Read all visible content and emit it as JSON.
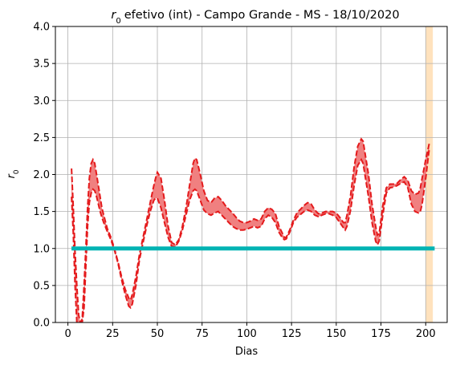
{
  "chart_data": {
    "type": "line",
    "title": "efetivo (int) - Campo Grande - MS - 18/10/2020",
    "title_symbol": "r",
    "title_symbol_sub": "0",
    "xlabel": "Dias",
    "ylabel_symbol": "r",
    "ylabel_sub": "0",
    "xlim": [
      -7,
      212
    ],
    "ylim": [
      0,
      4.0
    ],
    "x_ticks": [
      0,
      25,
      50,
      75,
      100,
      125,
      150,
      175,
      200
    ],
    "x_tick_labels": [
      "0",
      "25",
      "50",
      "75",
      "100",
      "125",
      "150",
      "175",
      "200"
    ],
    "y_ticks": [
      0,
      0.5,
      1.0,
      1.5,
      2.0,
      2.5,
      3.0,
      3.5,
      4.0
    ],
    "y_tick_labels": [
      "0.0",
      "0.5",
      "1.0",
      "1.5",
      "2.0",
      "2.5",
      "3.0",
      "3.5",
      "4.0"
    ],
    "grid": true,
    "colors": {
      "band_fill": "#f08080",
      "band_edge": "#e41a1c",
      "threshold": "#00b3b3",
      "highlight": "#ffe2bd"
    },
    "highlight_span": [
      200,
      204
    ],
    "threshold": {
      "y": 1.0,
      "x_start": 2,
      "x_end": 205
    },
    "series": [
      {
        "role": "upper",
        "x": [
          2,
          3,
          4,
          5,
          6,
          7,
          8,
          9,
          10,
          11,
          12,
          13,
          14,
          15,
          16,
          17,
          18,
          19,
          20,
          22,
          24,
          26,
          28,
          30,
          32,
          34,
          35,
          36,
          38,
          40,
          42,
          44,
          46,
          48,
          49,
          50,
          52,
          54,
          56,
          58,
          60,
          62,
          64,
          66,
          68,
          70,
          71,
          72,
          74,
          76,
          78,
          80,
          82,
          84,
          86,
          88,
          90,
          92,
          94,
          96,
          98,
          100,
          102,
          104,
          106,
          108,
          110,
          112,
          114,
          116,
          118,
          120,
          121,
          122,
          124,
          126,
          128,
          130,
          132,
          134,
          136,
          138,
          140,
          142,
          144,
          146,
          148,
          150,
          152,
          154,
          155,
          156,
          158,
          160,
          162,
          164,
          165,
          166,
          168,
          170,
          172,
          173,
          174,
          176,
          178,
          180,
          182,
          184,
          186,
          188,
          190,
          192,
          194,
          196,
          197,
          198,
          200,
          202
        ],
        "y": [
          2.08,
          1.55,
          0.95,
          0.5,
          0.1,
          0.0,
          0.05,
          0.5,
          1.0,
          1.55,
          1.95,
          2.15,
          2.2,
          2.15,
          2.0,
          1.85,
          1.7,
          1.55,
          1.45,
          1.27,
          1.15,
          1.0,
          0.82,
          0.62,
          0.45,
          0.33,
          0.3,
          0.38,
          0.62,
          0.92,
          1.15,
          1.38,
          1.62,
          1.85,
          1.95,
          2.03,
          1.95,
          1.65,
          1.3,
          1.08,
          1.05,
          1.12,
          1.3,
          1.55,
          1.85,
          2.15,
          2.22,
          2.2,
          2.0,
          1.78,
          1.65,
          1.62,
          1.68,
          1.7,
          1.65,
          1.58,
          1.53,
          1.48,
          1.42,
          1.37,
          1.35,
          1.35,
          1.37,
          1.4,
          1.38,
          1.4,
          1.5,
          1.55,
          1.53,
          1.47,
          1.3,
          1.2,
          1.15,
          1.15,
          1.25,
          1.38,
          1.48,
          1.53,
          1.58,
          1.62,
          1.6,
          1.52,
          1.47,
          1.48,
          1.5,
          1.5,
          1.5,
          1.48,
          1.42,
          1.35,
          1.35,
          1.45,
          1.72,
          2.1,
          2.38,
          2.48,
          2.45,
          2.3,
          2.0,
          1.6,
          1.3,
          1.18,
          1.2,
          1.58,
          1.82,
          1.87,
          1.87,
          1.88,
          1.93,
          1.97,
          1.92,
          1.78,
          1.73,
          1.75,
          1.82,
          1.95,
          2.2,
          2.42
        ]
      },
      {
        "role": "lower",
        "x": [
          2,
          3,
          4,
          5,
          6,
          7,
          8,
          9,
          10,
          11,
          12,
          13,
          14,
          15,
          16,
          17,
          18,
          19,
          20,
          22,
          24,
          26,
          28,
          30,
          32,
          34,
          35,
          36,
          38,
          40,
          42,
          44,
          46,
          48,
          49,
          50,
          52,
          54,
          56,
          58,
          60,
          62,
          64,
          66,
          68,
          70,
          71,
          72,
          74,
          76,
          78,
          80,
          82,
          84,
          86,
          88,
          90,
          92,
          94,
          96,
          98,
          100,
          102,
          104,
          106,
          108,
          110,
          112,
          114,
          116,
          118,
          120,
          121,
          122,
          124,
          126,
          128,
          130,
          132,
          134,
          136,
          138,
          140,
          142,
          144,
          146,
          148,
          150,
          152,
          154,
          155,
          156,
          158,
          160,
          162,
          164,
          165,
          166,
          168,
          170,
          172,
          173,
          174,
          176,
          178,
          180,
          182,
          184,
          186,
          188,
          190,
          192,
          194,
          196,
          197,
          198,
          200,
          202
        ],
        "y": [
          1.7,
          1.2,
          0.5,
          0.0,
          0.0,
          0.0,
          0.0,
          0.2,
          0.75,
          1.3,
          1.62,
          1.75,
          1.8,
          1.78,
          1.7,
          1.6,
          1.5,
          1.42,
          1.35,
          1.23,
          1.12,
          0.98,
          0.8,
          0.58,
          0.38,
          0.22,
          0.2,
          0.25,
          0.5,
          0.85,
          1.08,
          1.3,
          1.5,
          1.65,
          1.68,
          1.68,
          1.55,
          1.35,
          1.15,
          1.03,
          1.02,
          1.1,
          1.25,
          1.45,
          1.65,
          1.78,
          1.8,
          1.78,
          1.65,
          1.52,
          1.47,
          1.45,
          1.48,
          1.5,
          1.45,
          1.4,
          1.35,
          1.3,
          1.27,
          1.25,
          1.25,
          1.26,
          1.28,
          1.3,
          1.28,
          1.3,
          1.4,
          1.45,
          1.42,
          1.35,
          1.22,
          1.14,
          1.12,
          1.13,
          1.22,
          1.35,
          1.42,
          1.46,
          1.5,
          1.52,
          1.5,
          1.45,
          1.43,
          1.45,
          1.47,
          1.47,
          1.45,
          1.42,
          1.35,
          1.28,
          1.25,
          1.3,
          1.52,
          1.85,
          2.12,
          2.2,
          2.15,
          2.0,
          1.7,
          1.35,
          1.1,
          1.05,
          1.1,
          1.45,
          1.75,
          1.82,
          1.83,
          1.85,
          1.88,
          1.9,
          1.82,
          1.6,
          1.5,
          1.48,
          1.5,
          1.6,
          1.95,
          2.35
        ]
      }
    ]
  }
}
